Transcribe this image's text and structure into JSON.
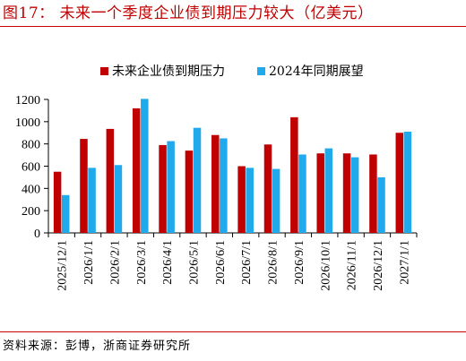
{
  "header": {
    "title": "图17：  未来一个季度企业债到期压力较大（亿美元）"
  },
  "footer": {
    "source": "资料来源：彭博，浙商证券研究所"
  },
  "colors": {
    "accent": "#c00000",
    "series_1": "#c00000",
    "series_2": "#21aaeb"
  },
  "chart_data": {
    "type": "bar",
    "title": "未来一个季度企业债到期压力较大（亿美元）",
    "xlabel": "",
    "ylabel": "",
    "ylim": [
      0,
      1200
    ],
    "yticks": [
      0,
      200,
      400,
      600,
      800,
      1000,
      1200
    ],
    "grid": false,
    "legend_position": "top",
    "categories": [
      "2025/12/1",
      "2026/1/1",
      "2026/2/1",
      "2026/3/1",
      "2026/4/1",
      "2026/5/1",
      "2026/6/1",
      "2026/7/1",
      "2026/8/1",
      "2026/9/1",
      "2026/10/1",
      "2026/11/1",
      "2026/12/1",
      "2027/1/1"
    ],
    "series": [
      {
        "name": "未来企业债到期压力",
        "color": "#c00000",
        "values": [
          550,
          845,
          935,
          1120,
          790,
          740,
          880,
          600,
          795,
          1040,
          715,
          715,
          705,
          900
        ]
      },
      {
        "name": "2024年同期展望",
        "color": "#21aaeb",
        "values": [
          340,
          585,
          610,
          1205,
          825,
          945,
          850,
          585,
          575,
          705,
          760,
          680,
          500,
          910
        ]
      }
    ]
  }
}
